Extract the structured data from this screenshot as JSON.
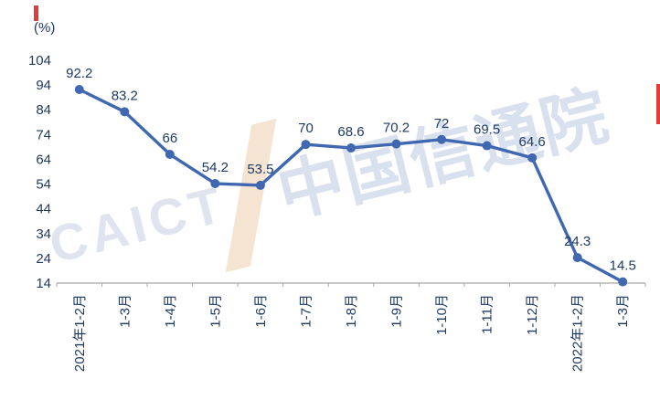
{
  "chart_data": {
    "type": "line",
    "title": "",
    "ylabel": "(%)",
    "xlabel": "",
    "categories": [
      "2021年1-2月",
      "1-3月",
      "1-4月",
      "1-5月",
      "1-6月",
      "1-7月",
      "1-8月",
      "1-9月",
      "1-10月",
      "1-11月",
      "1-12月",
      "2022年1-2月",
      "1-3月"
    ],
    "values": [
      92.2,
      83.2,
      66,
      54.2,
      53.5,
      70,
      68.6,
      70.2,
      72,
      69.5,
      64.6,
      24.3,
      14.5
    ],
    "point_labels": [
      "92.2",
      "83.2",
      "66",
      "54.2",
      "53.5",
      "70",
      "68.6",
      "70.2",
      "72",
      "69.5",
      "64.6",
      "24.3",
      "14.5"
    ],
    "y_ticks": [
      14,
      24,
      34,
      44,
      54,
      64,
      74,
      84,
      94,
      104
    ],
    "ylim": [
      14,
      104
    ],
    "grid": false,
    "legend": "none",
    "line_color": "#3f68b0",
    "label_color": "#1f3a63",
    "axis_color": "#a6a6a6"
  },
  "watermark": {
    "cn": "中国信通院",
    "en": "CAICT"
  }
}
